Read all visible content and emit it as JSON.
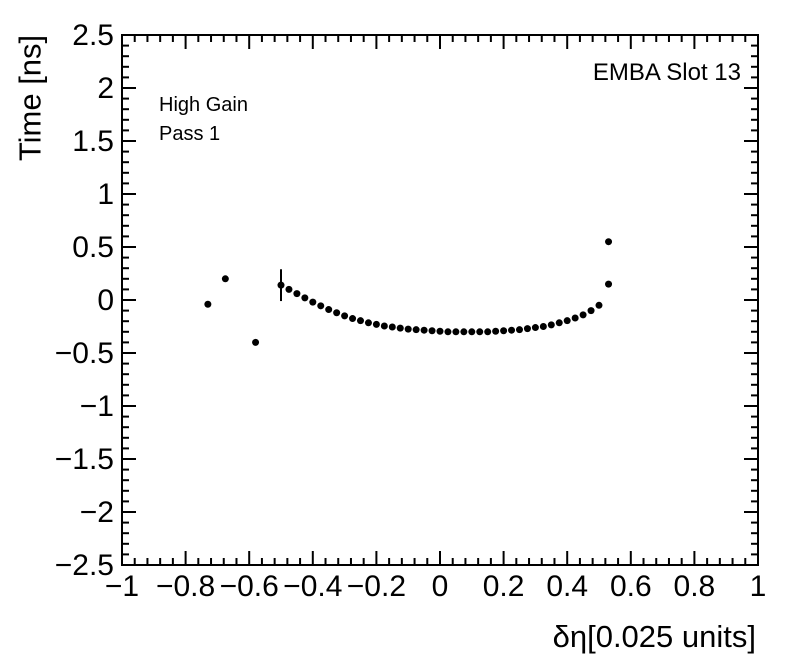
{
  "chart_data": {
    "type": "scatter",
    "title": "",
    "xlabel": "δη[0.025 units]",
    "ylabel": "Time [ns]",
    "xlim": [
      -1,
      1
    ],
    "ylim": [
      -2.5,
      2.5
    ],
    "grid": false,
    "legend": "none",
    "marker": "filled-circle",
    "marker_color": "#000000",
    "frame_color": "#000000",
    "background_color": "#ffffff",
    "labels": {
      "corner": "EMBA Slot 13",
      "line1": "High Gain",
      "line2": "Pass 1"
    },
    "x_ticks": {
      "values": [
        -1,
        -0.8,
        -0.6,
        -0.4,
        -0.2,
        0,
        0.2,
        0.4,
        0.6,
        0.8,
        1
      ],
      "labels": [
        "−1",
        "−0.8",
        "−0.6",
        "−0.4",
        "−0.2",
        "0",
        "0.2",
        "0.4",
        "0.6",
        "0.8",
        "1"
      ],
      "minor_divisions": 5
    },
    "y_ticks": {
      "values": [
        -2.5,
        -2,
        -1.5,
        -1,
        -0.5,
        0,
        0.5,
        1,
        1.5,
        2,
        2.5
      ],
      "labels": [
        "−2.5",
        "−2",
        "−1.5",
        "−1",
        "−0.5",
        "0",
        "0.5",
        "1",
        "1.5",
        "2",
        "2.5"
      ],
      "minor_divisions": 5
    },
    "series": [
      {
        "name": "timing-vs-deta-curve",
        "points": [
          [
            -0.5,
            0.14
          ],
          [
            -0.475,
            0.1
          ],
          [
            -0.45,
            0.06
          ],
          [
            -0.425,
            0.02
          ],
          [
            -0.4,
            -0.02
          ],
          [
            -0.375,
            -0.055
          ],
          [
            -0.35,
            -0.09
          ],
          [
            -0.325,
            -0.12
          ],
          [
            -0.3,
            -0.15
          ],
          [
            -0.275,
            -0.175
          ],
          [
            -0.25,
            -0.195
          ],
          [
            -0.225,
            -0.215
          ],
          [
            -0.2,
            -0.23
          ],
          [
            -0.175,
            -0.245
          ],
          [
            -0.15,
            -0.255
          ],
          [
            -0.125,
            -0.265
          ],
          [
            -0.1,
            -0.275
          ],
          [
            -0.075,
            -0.28
          ],
          [
            -0.05,
            -0.285
          ],
          [
            -0.025,
            -0.29
          ],
          [
            0,
            -0.295
          ],
          [
            0.025,
            -0.3
          ],
          [
            0.05,
            -0.3
          ],
          [
            0.075,
            -0.3
          ],
          [
            0.1,
            -0.3
          ],
          [
            0.125,
            -0.3
          ],
          [
            0.15,
            -0.3
          ],
          [
            0.175,
            -0.295
          ],
          [
            0.2,
            -0.29
          ],
          [
            0.225,
            -0.285
          ],
          [
            0.25,
            -0.28
          ],
          [
            0.275,
            -0.27
          ],
          [
            0.3,
            -0.26
          ],
          [
            0.325,
            -0.25
          ],
          [
            0.35,
            -0.235
          ],
          [
            0.375,
            -0.215
          ],
          [
            0.4,
            -0.195
          ],
          [
            0.425,
            -0.17
          ],
          [
            0.45,
            -0.14
          ],
          [
            0.475,
            -0.1
          ],
          [
            0.5,
            -0.05
          ]
        ]
      },
      {
        "name": "outlier-points",
        "points": [
          [
            -0.73,
            -0.04
          ],
          [
            -0.675,
            0.2
          ],
          [
            -0.58,
            -0.4
          ],
          [
            0.53,
            0.55
          ],
          [
            0.53,
            0.15
          ]
        ]
      }
    ],
    "error_bars": [
      {
        "x": -0.5,
        "y": 0.14,
        "yerr": 0.15
      }
    ]
  }
}
